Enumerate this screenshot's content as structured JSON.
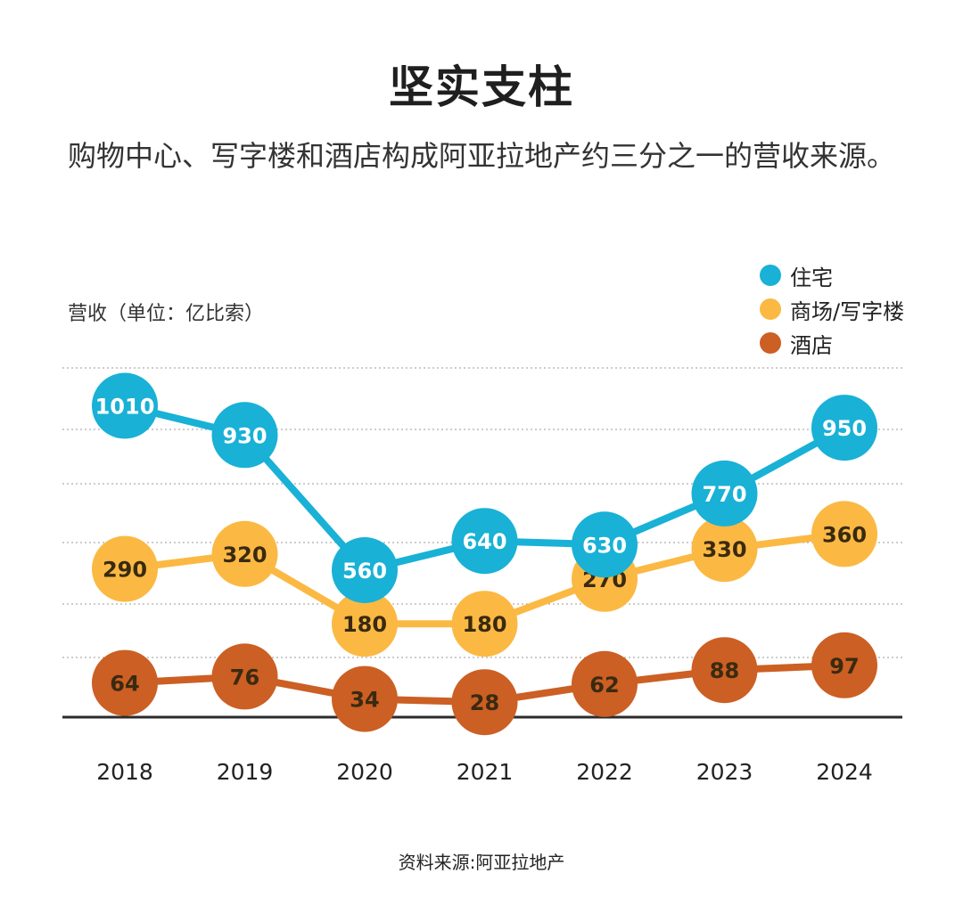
{
  "header": {
    "title": "坚实支柱",
    "subtitle": "购物中心、写字楼和酒店构成阿亚拉地产约三分之一的营收来源。"
  },
  "footer": {
    "source": "资料来源:阿亚拉地产"
  },
  "chart_data": {
    "type": "line",
    "title": "坚实支柱",
    "subtitle": "购物中心、写字楼和酒店构成阿亚拉地产约三分之一的营收来源。",
    "ylabel": "营收（单位：亿比索）",
    "xlabel": "",
    "x": [
      "2018",
      "2019",
      "2020",
      "2021",
      "2022",
      "2023",
      "2024"
    ],
    "legend_position": "top-right",
    "grid": true,
    "series": [
      {
        "name": "住宅",
        "color": "#19b1d6",
        "values": [
          1010,
          930,
          560,
          640,
          630,
          770,
          950
        ]
      },
      {
        "name": "商场/写字楼",
        "color": "#fbb943",
        "values": [
          290,
          320,
          180,
          180,
          270,
          330,
          360
        ]
      },
      {
        "name": "酒店",
        "color": "#cc5f24",
        "values": [
          64,
          76,
          34,
          28,
          62,
          88,
          97
        ]
      }
    ]
  }
}
